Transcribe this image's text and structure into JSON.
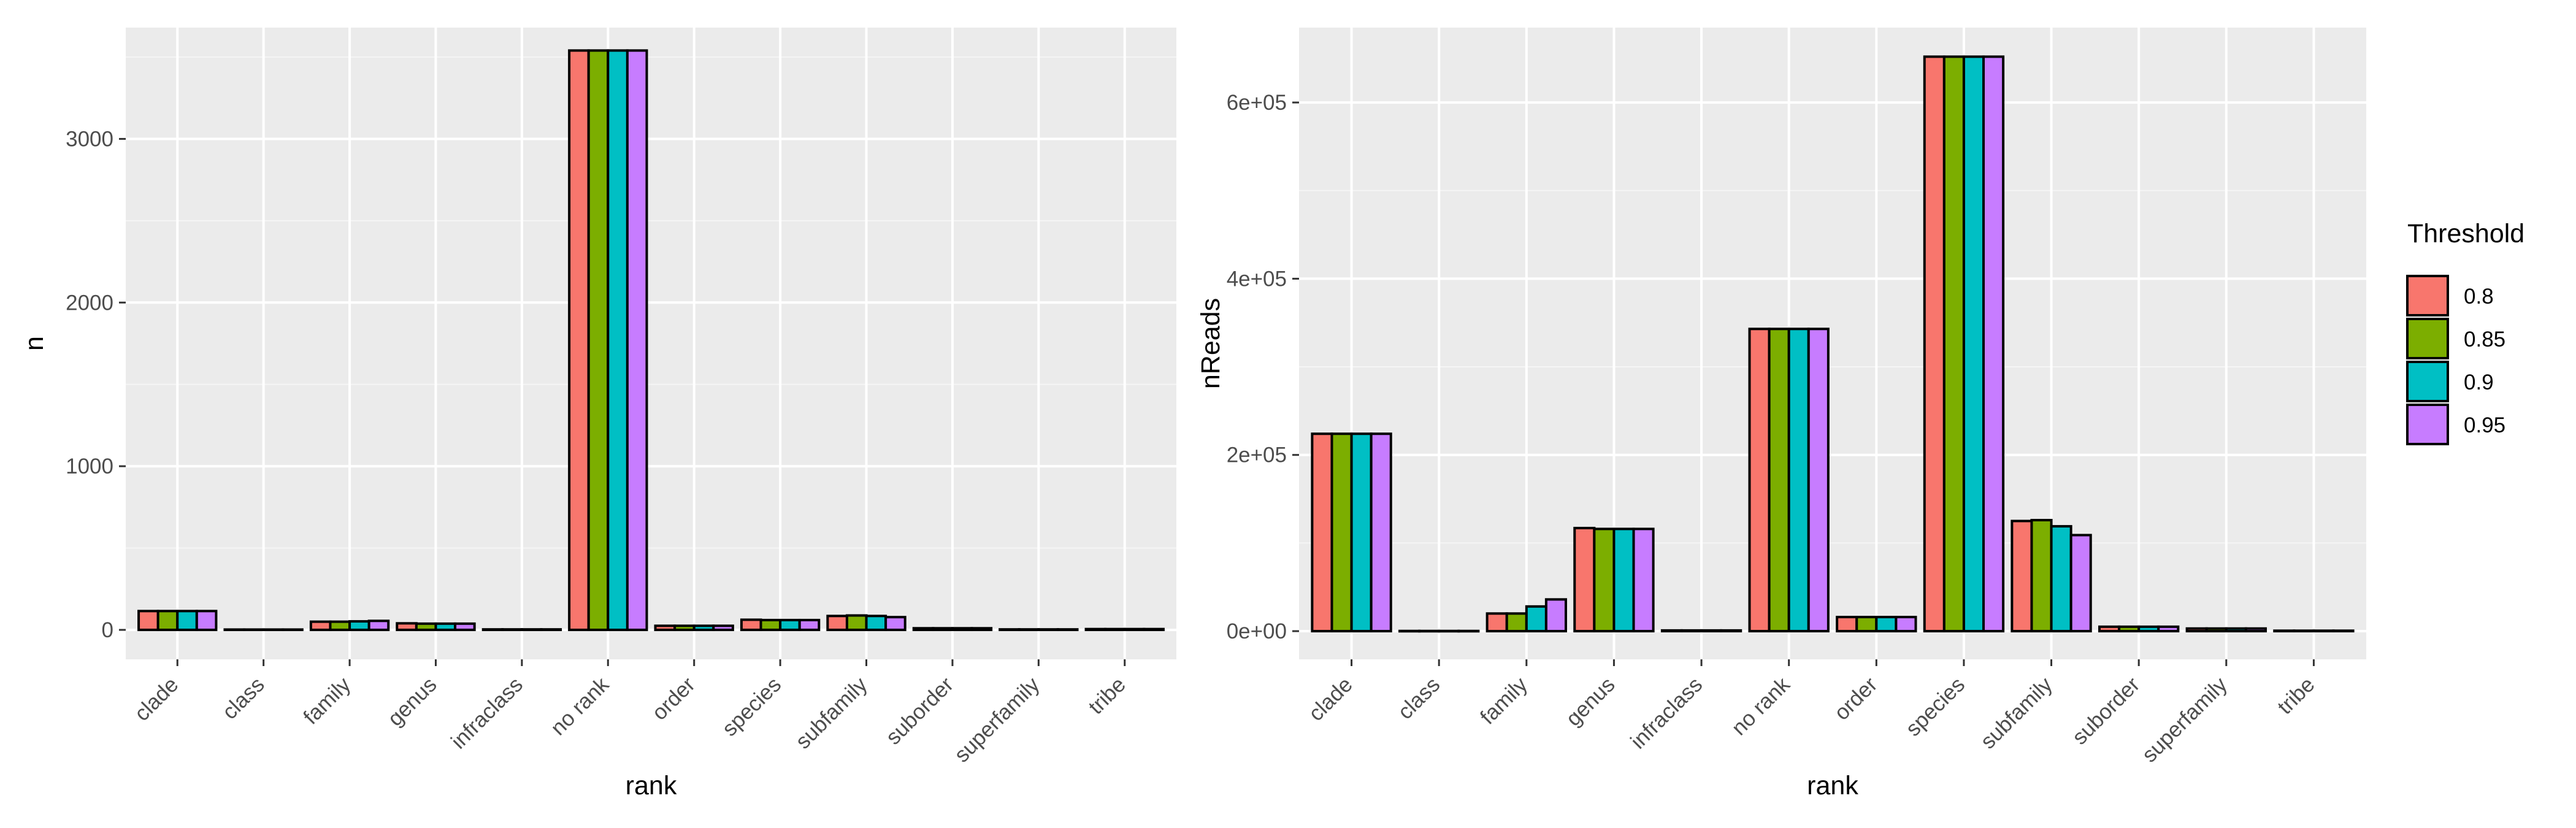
{
  "legend": {
    "title": "Threshold",
    "items": [
      {
        "label": "0.8",
        "color": "#F8766D"
      },
      {
        "label": "0.85",
        "color": "#7CAE00"
      },
      {
        "label": "0.9",
        "color": "#00BFC4"
      },
      {
        "label": "0.95",
        "color": "#C77CFF"
      }
    ]
  },
  "chart_data": [
    {
      "type": "bar",
      "xlabel": "rank",
      "ylabel": "n",
      "ylim": [
        -180,
        3680
      ],
      "yticks": [
        0,
        1000,
        2000,
        3000
      ],
      "ytick_labels": [
        "0",
        "1000",
        "2000",
        "3000"
      ],
      "grid": true,
      "legend": "none",
      "categories": [
        "clade",
        "class",
        "family",
        "genus",
        "infraclass",
        "no rank",
        "order",
        "species",
        "subfamily",
        "suborder",
        "superfamily",
        "tribe"
      ],
      "series": [
        {
          "name": "0.8",
          "values": [
            115,
            2,
            50,
            40,
            3,
            3540,
            25,
            62,
            85,
            10,
            3,
            5
          ]
        },
        {
          "name": "0.85",
          "values": [
            115,
            2,
            50,
            38,
            3,
            3540,
            25,
            60,
            88,
            10,
            3,
            5
          ]
        },
        {
          "name": "0.9",
          "values": [
            115,
            2,
            52,
            38,
            3,
            3540,
            25,
            60,
            85,
            10,
            3,
            5
          ]
        },
        {
          "name": "0.95",
          "values": [
            115,
            2,
            55,
            38,
            3,
            3540,
            25,
            60,
            78,
            10,
            3,
            5
          ]
        }
      ]
    },
    {
      "type": "bar",
      "xlabel": "rank",
      "ylabel": "nReads",
      "ylim": [
        -32000,
        685000
      ],
      "yticks": [
        0,
        200000,
        400000,
        600000
      ],
      "ytick_labels": [
        "0e+00",
        "2e+05",
        "4e+05",
        "6e+05"
      ],
      "grid": true,
      "legend": "right",
      "categories": [
        "clade",
        "class",
        "family",
        "genus",
        "infraclass",
        "no rank",
        "order",
        "species",
        "subfamily",
        "suborder",
        "superfamily",
        "tribe"
      ],
      "series": [
        {
          "name": "0.8",
          "values": [
            224000,
            200,
            20000,
            117000,
            800,
            343000,
            16000,
            652000,
            125000,
            5000,
            3000,
            500
          ]
        },
        {
          "name": "0.85",
          "values": [
            224000,
            200,
            20000,
            116000,
            800,
            343000,
            16000,
            652000,
            126000,
            5000,
            3000,
            500
          ]
        },
        {
          "name": "0.9",
          "values": [
            224000,
            200,
            28000,
            116000,
            800,
            343000,
            16000,
            652000,
            119000,
            5000,
            3000,
            500
          ]
        },
        {
          "name": "0.95",
          "values": [
            224000,
            200,
            36000,
            116000,
            800,
            343000,
            16000,
            652000,
            109000,
            5000,
            3000,
            500
          ]
        }
      ]
    }
  ]
}
